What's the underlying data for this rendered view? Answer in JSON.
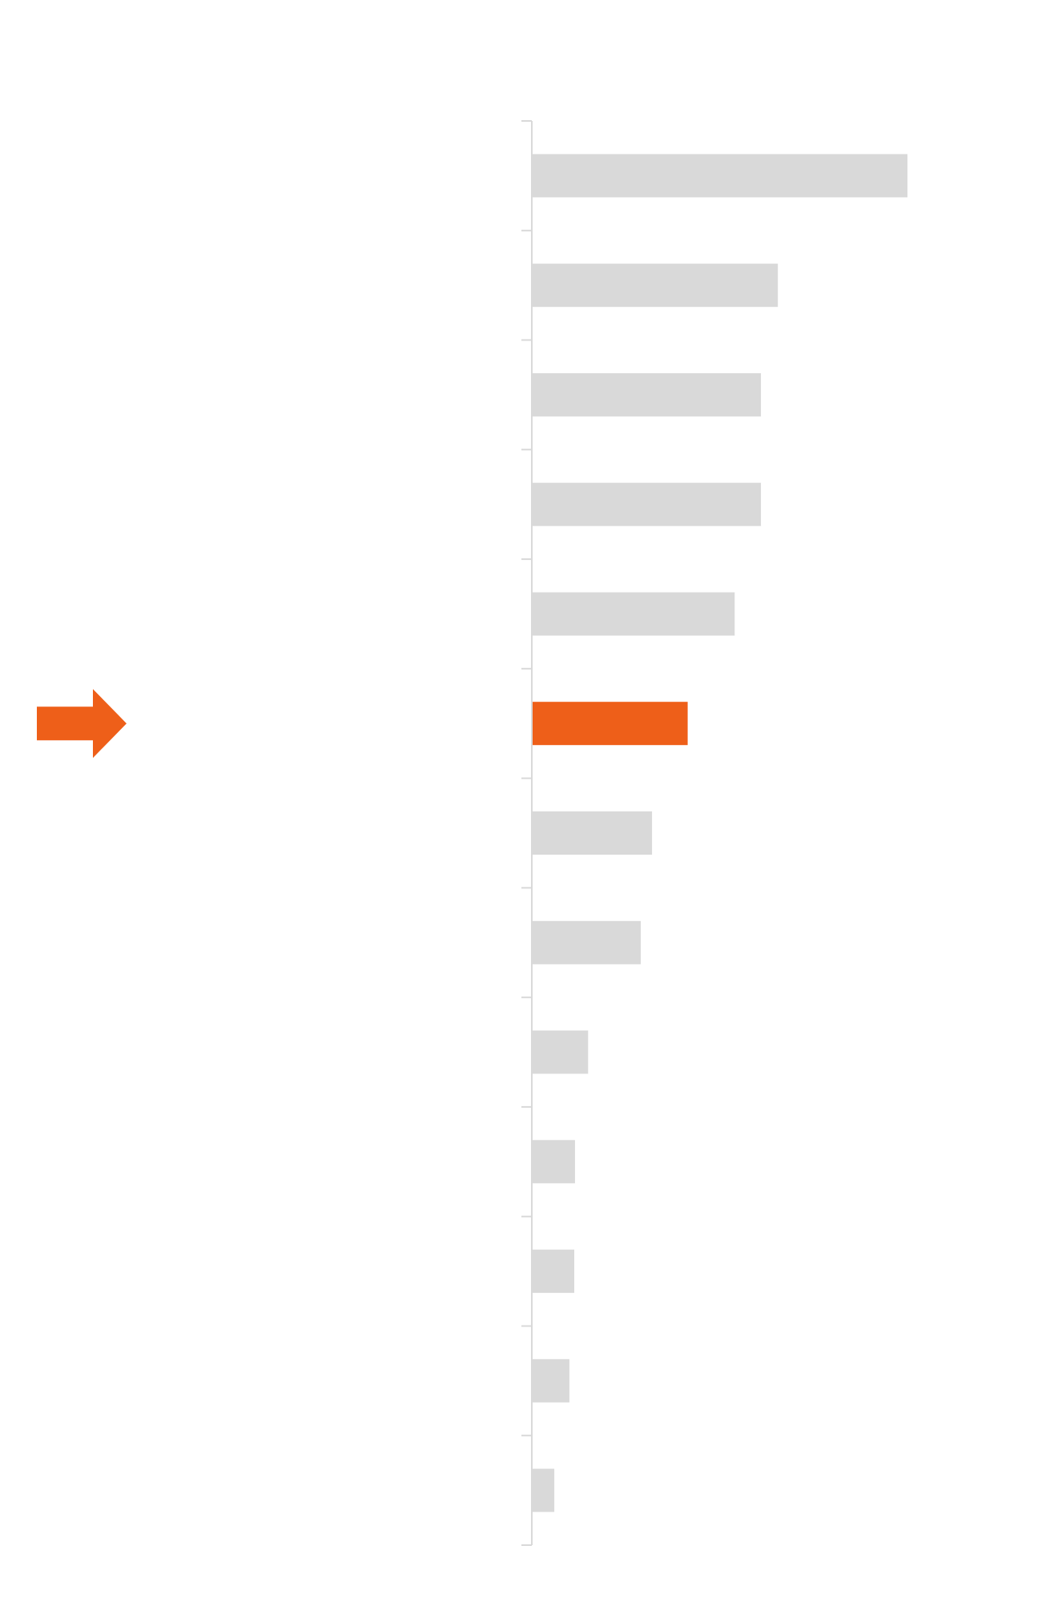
{
  "chart_data": {
    "type": "bar",
    "orientation": "horizontal",
    "categories": [
      "",
      "",
      "",
      "",
      "",
      "",
      "",
      "",
      "",
      "",
      "",
      "",
      ""
    ],
    "values": [
      100,
      65.5,
      61,
      61,
      54,
      41.5,
      32,
      29,
      15,
      11.5,
      11.3,
      10,
      6
    ],
    "xlim": [
      0,
      100
    ],
    "highlight_index": 5,
    "grid": false,
    "colors": {
      "bar": "#d9d9d9",
      "highlight": "#ee5f19",
      "axis": "#d9d9d9",
      "arrow": "#ee5f19"
    }
  },
  "marker": {
    "icon": "arrow-right-icon",
    "points_to_index": 5
  }
}
